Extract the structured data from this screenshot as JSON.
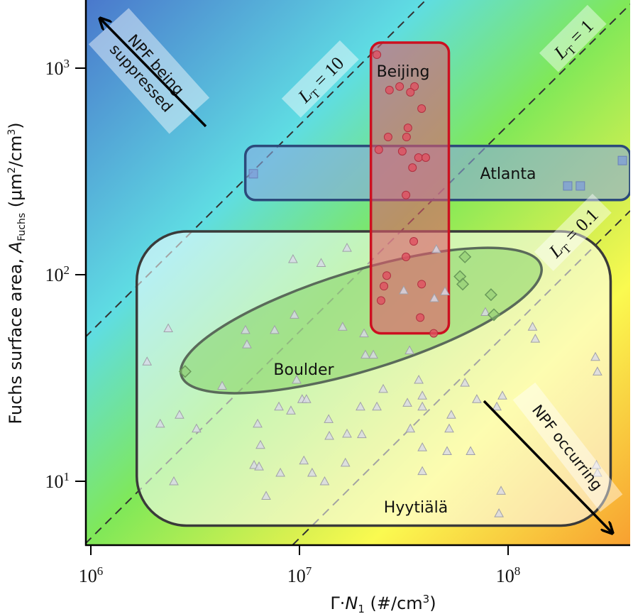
{
  "chart_data": {
    "type": "scatter",
    "xscale": "log",
    "yscale": "log",
    "xlabel_main": "Γ·",
    "xlabel_var": "N",
    "xlabel_sub": "1",
    "xlabel_unit": " (#/cm",
    "xlabel_unit_sup": "3",
    "xlabel_close": ")",
    "ylabel_main": "Fuchs surface area, ",
    "ylabel_var": "A",
    "ylabel_sub": "Fuchs",
    "ylabel_unit": " (μm",
    "ylabel_unit_sup": "2",
    "ylabel_unit2": "/cm",
    "ylabel_unit2_sup": "3",
    "ylabel_close": ")",
    "xlim": [
      930000,
      390000000
    ],
    "ylim": [
      4.9,
      2150
    ],
    "xticks": [
      {
        "base": "10",
        "exp": "6",
        "value": 1000000
      },
      {
        "base": "10",
        "exp": "7",
        "value": 10000000
      },
      {
        "base": "10",
        "exp": "8",
        "value": 100000000
      }
    ],
    "yticks": [
      {
        "base": "10",
        "exp": "3",
        "value": 1000
      },
      {
        "base": "10",
        "exp": "2",
        "value": 100
      },
      {
        "base": "10",
        "exp": "1",
        "value": 10
      }
    ],
    "reference_lines": [
      {
        "label_var": "L",
        "label_sub": "T",
        "label_eq": " = 10",
        "LT": 10,
        "coef": 5.3e-05
      },
      {
        "label_var": "L",
        "label_sub": "T",
        "label_eq": " = 1",
        "LT": 1,
        "coef": 5.3e-06
      },
      {
        "label_var": "L",
        "label_sub": "T",
        "label_eq": " = 0.1",
        "LT": 0.1,
        "coef": 5.3e-07
      }
    ],
    "annotations": {
      "suppressed_line1": "NPF being",
      "suppressed_line2": "suppressed",
      "occurring": "NPF occurring"
    },
    "gradient_colors": [
      "#4a78cc",
      "#5fdde3",
      "#80e858",
      "#d8f050",
      "#fafa50",
      "#f8a030"
    ],
    "series": [
      {
        "name": "Hyytiälä",
        "marker": "triangle",
        "color": "#d8d8e8",
        "region": {
          "shape": "rounded-rect",
          "x": [
            1660000,
            310000000
          ],
          "y": [
            6.1,
            162
          ],
          "fill": "#ffffff",
          "stroke": "#3a3a3a"
        },
        "points": [
          [
            1860000,
            38
          ],
          [
            2350000,
            55
          ],
          [
            2150000,
            19
          ],
          [
            2660000,
            21
          ],
          [
            2500000,
            10
          ],
          [
            3210000,
            18
          ],
          [
            4260000,
            29
          ],
          [
            5510000,
            54
          ],
          [
            5600000,
            46
          ],
          [
            6300000,
            19
          ],
          [
            6500000,
            15
          ],
          [
            6060000,
            12
          ],
          [
            6400000,
            11.8
          ],
          [
            6920000,
            8.5
          ],
          [
            7600000,
            54
          ],
          [
            7970000,
            23
          ],
          [
            8100000,
            11
          ],
          [
            9100000,
            22
          ],
          [
            9460000,
            64
          ],
          [
            9310000,
            119
          ],
          [
            9690000,
            31
          ],
          [
            10300000,
            25
          ],
          [
            10800000,
            25
          ],
          [
            10500000,
            12.6
          ],
          [
            11500000,
            11
          ],
          [
            12700000,
            114
          ],
          [
            13200000,
            10
          ],
          [
            13800000,
            20
          ],
          [
            13900000,
            16.6
          ],
          [
            16100000,
            56
          ],
          [
            16900000,
            135
          ],
          [
            16900000,
            17
          ],
          [
            16600000,
            12.3
          ],
          [
            19600000,
            23
          ],
          [
            19900000,
            16.9
          ],
          [
            20700000,
            41
          ],
          [
            20400000,
            52
          ],
          [
            22600000,
            41
          ],
          [
            23500000,
            23
          ],
          [
            25200000,
            28
          ],
          [
            32900000,
            24
          ],
          [
            33700000,
            43
          ],
          [
            34000000,
            18
          ],
          [
            37300000,
            31
          ],
          [
            38800000,
            26
          ],
          [
            38800000,
            23
          ],
          [
            38800000,
            11.2
          ],
          [
            38800000,
            14.6
          ],
          [
            45300000,
            133
          ],
          [
            52200000,
            18
          ],
          [
            53400000,
            21
          ],
          [
            51000000,
            14
          ],
          [
            62100000,
            30
          ],
          [
            66100000,
            14
          ],
          [
            70800000,
            25
          ],
          [
            77800000,
            66
          ],
          [
            93900000,
            26
          ],
          [
            88300000,
            23
          ],
          [
            92500000,
            9
          ],
          [
            90400000,
            7
          ],
          [
            131000000,
            56
          ],
          [
            135000000,
            49
          ],
          [
            262000000,
            40
          ],
          [
            268000000,
            34
          ],
          [
            265000000,
            12
          ],
          [
            268000000,
            11
          ],
          [
            31600000,
            84
          ],
          [
            49800000,
            83
          ],
          [
            44300000,
            77
          ]
        ]
      },
      {
        "name": "Boulder",
        "marker": "diamond",
        "color": "#8cc870",
        "region": {
          "shape": "ellipse",
          "center": [
            19000000,
            60
          ],
          "fill": "#7fd060",
          "stroke": "#5a6a5a"
        },
        "points": [
          [
            2830000,
            34
          ],
          [
            62100000,
            122
          ],
          [
            58800000,
            98
          ],
          [
            60600000,
            90
          ],
          [
            82800000,
            80
          ],
          [
            85500000,
            64
          ]
        ]
      },
      {
        "name": "Atlanta",
        "marker": "square",
        "color": "#7f9fd8",
        "region": {
          "shape": "rounded-rect",
          "x": [
            5500000,
            400000000
          ],
          "y": [
            230,
            420
          ],
          "fill": "#8aa8e0",
          "stroke": "#2c4a7a"
        },
        "points": [
          [
            6010000,
            308
          ],
          [
            353000000,
            357
          ],
          [
            193000000,
            269
          ],
          [
            222000000,
            269
          ]
        ]
      },
      {
        "name": "Beijing",
        "marker": "circle",
        "color": "#e05060",
        "region": {
          "shape": "rounded-rect",
          "x": [
            22000000,
            52000000
          ],
          "y": [
            52,
            1330
          ],
          "fill": "#e05a6a",
          "stroke": "#cc1020"
        },
        "points": [
          [
            23500000,
            1162
          ],
          [
            30200000,
            815
          ],
          [
            27000000,
            783
          ],
          [
            35600000,
            815
          ],
          [
            34000000,
            764
          ],
          [
            38500000,
            637
          ],
          [
            33100000,
            514
          ],
          [
            32600000,
            464
          ],
          [
            26600000,
            464
          ],
          [
            24000000,
            403
          ],
          [
            31100000,
            396
          ],
          [
            37200000,
            369
          ],
          [
            40300000,
            369
          ],
          [
            34800000,
            330
          ],
          [
            32400000,
            243
          ],
          [
            35300000,
            145
          ],
          [
            32400000,
            122
          ],
          [
            26200000,
            99
          ],
          [
            25400000,
            88
          ],
          [
            38500000,
            90
          ],
          [
            24600000,
            75
          ],
          [
            37900000,
            62
          ],
          [
            44000000,
            52
          ]
        ]
      }
    ]
  }
}
